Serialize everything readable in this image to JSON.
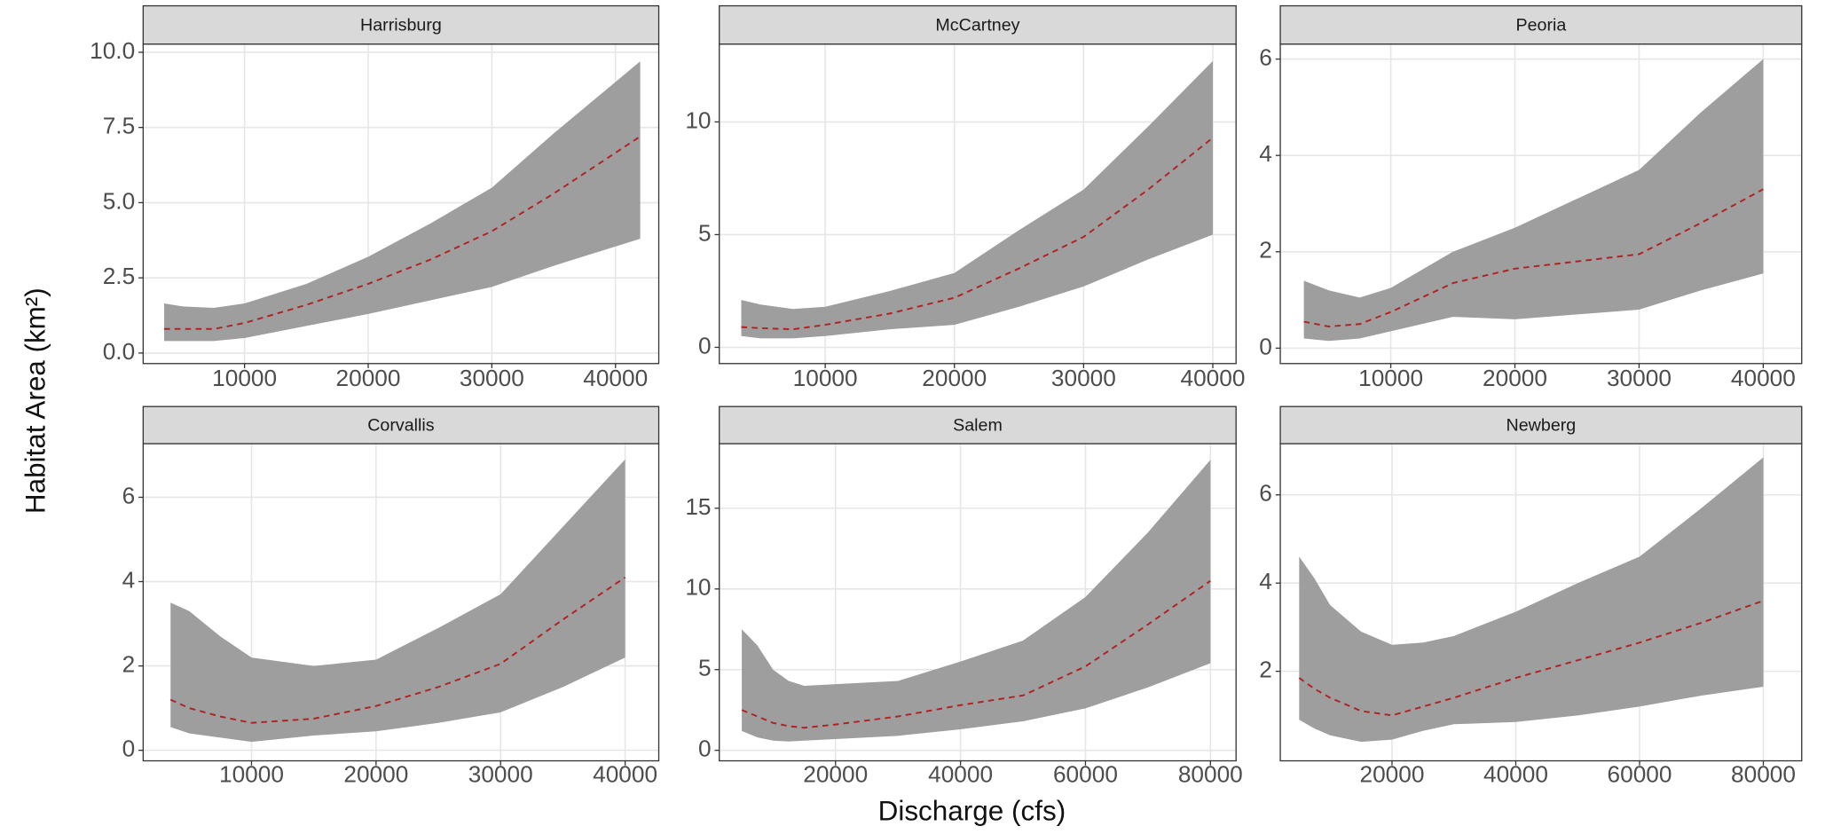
{
  "chart_data": {
    "type": "facet",
    "xlabel": "Discharge (cfs)",
    "ylabel": "Habitat Area (km²)",
    "panels": [
      {
        "type": "band",
        "title": "Harrisburg",
        "band_color": "#999999",
        "line_color": "#b22222",
        "x": [
          3500,
          5000,
          7500,
          10000,
          15000,
          20000,
          25000,
          30000,
          35000,
          42000
        ],
        "upper": [
          1.65,
          1.55,
          1.5,
          1.65,
          2.3,
          3.2,
          4.3,
          5.5,
          7.3,
          9.7
        ],
        "median": [
          0.8,
          0.8,
          0.8,
          1.0,
          1.6,
          2.3,
          3.1,
          4.05,
          5.3,
          7.2
        ],
        "lower": [
          0.4,
          0.4,
          0.4,
          0.5,
          0.9,
          1.3,
          1.75,
          2.2,
          2.9,
          3.8
        ],
        "xlim": [
          1800,
          43500
        ],
        "ylim": [
          -0.35,
          10.27
        ],
        "xticks": [
          10000,
          20000,
          30000,
          40000
        ],
        "yticks": [
          {
            "value": 0,
            "label": "0.0"
          },
          2.5,
          {
            "value": 5,
            "label": "5.0"
          },
          7.5,
          {
            "value": 10,
            "label": "10.0"
          }
        ]
      },
      {
        "type": "band",
        "title": "McCartney",
        "band_color": "#999999",
        "line_color": "#b22222",
        "x": [
          3500,
          5000,
          7500,
          10000,
          15000,
          20000,
          25000,
          30000,
          35000,
          40000
        ],
        "upper": [
          2.1,
          1.9,
          1.7,
          1.8,
          2.5,
          3.3,
          5.2,
          7.0,
          9.8,
          12.7
        ],
        "median": [
          0.9,
          0.85,
          0.8,
          1.0,
          1.5,
          2.2,
          3.5,
          4.9,
          7.0,
          9.3
        ],
        "lower": [
          0.5,
          0.4,
          0.4,
          0.5,
          0.8,
          1.0,
          1.8,
          2.7,
          3.9,
          5.0
        ],
        "xlim": [
          1800,
          41800
        ],
        "ylim": [
          -0.72,
          13.45
        ],
        "xticks": [
          10000,
          20000,
          30000,
          40000
        ],
        "yticks": [
          0,
          5,
          10
        ]
      },
      {
        "type": "band",
        "title": "Peoria",
        "band_color": "#999999",
        "line_color": "#b22222",
        "x": [
          3000,
          5000,
          7500,
          10000,
          15000,
          20000,
          25000,
          30000,
          35000,
          40000
        ],
        "upper": [
          1.4,
          1.2,
          1.05,
          1.25,
          2.0,
          2.5,
          3.1,
          3.7,
          4.9,
          6.0
        ],
        "median": [
          0.55,
          0.45,
          0.5,
          0.75,
          1.35,
          1.65,
          1.8,
          1.95,
          2.6,
          3.3
        ],
        "lower": [
          0.2,
          0.15,
          0.2,
          0.35,
          0.65,
          0.6,
          0.7,
          0.8,
          1.2,
          1.55
        ],
        "xlim": [
          1100,
          43100
        ],
        "ylim": [
          -0.32,
          6.31
        ],
        "xticks": [
          10000,
          20000,
          30000,
          40000
        ],
        "yticks": [
          0,
          2,
          4,
          6
        ]
      },
      {
        "type": "band",
        "title": "Corvallis",
        "band_color": "#999999",
        "line_color": "#b22222",
        "x": [
          3500,
          5000,
          7500,
          10000,
          15000,
          20000,
          25000,
          30000,
          35000,
          40000
        ],
        "upper": [
          3.5,
          3.3,
          2.7,
          2.2,
          2.0,
          2.15,
          2.9,
          3.7,
          5.3,
          6.9
        ],
        "median": [
          1.2,
          1.0,
          0.8,
          0.65,
          0.75,
          1.05,
          1.5,
          2.05,
          3.1,
          4.1
        ],
        "lower": [
          0.55,
          0.4,
          0.3,
          0.2,
          0.35,
          0.45,
          0.65,
          0.9,
          1.5,
          2.2
        ],
        "xlim": [
          1300,
          42700
        ],
        "ylim": [
          -0.25,
          7.27
        ],
        "xticks": [
          10000,
          20000,
          30000,
          40000
        ],
        "yticks": [
          0,
          2,
          4,
          6
        ]
      },
      {
        "type": "band",
        "title": "Salem",
        "band_color": "#999999",
        "line_color": "#b22222",
        "x": [
          5000,
          7500,
          10000,
          12500,
          15000,
          20000,
          30000,
          40000,
          50000,
          60000,
          70000,
          80000
        ],
        "upper": [
          7.5,
          6.5,
          5.0,
          4.3,
          4.0,
          4.1,
          4.3,
          5.5,
          6.8,
          9.5,
          13.5,
          18.0
        ],
        "median": [
          2.5,
          2.1,
          1.7,
          1.5,
          1.4,
          1.6,
          2.1,
          2.8,
          3.4,
          5.2,
          7.8,
          10.5
        ],
        "lower": [
          1.2,
          0.8,
          0.6,
          0.55,
          0.6,
          0.7,
          0.9,
          1.3,
          1.8,
          2.6,
          3.9,
          5.4
        ],
        "xlim": [
          1400,
          84100
        ],
        "ylim": [
          -0.65,
          19.0
        ],
        "xticks": [
          20000,
          40000,
          60000,
          80000
        ],
        "yticks": [
          0,
          5,
          10,
          15
        ]
      },
      {
        "type": "band",
        "title": "Newberg",
        "band_color": "#999999",
        "line_color": "#b22222",
        "x": [
          5000,
          7500,
          10000,
          15000,
          20000,
          25000,
          30000,
          40000,
          50000,
          60000,
          70000,
          80000
        ],
        "upper": [
          4.6,
          4.1,
          3.5,
          2.9,
          2.6,
          2.65,
          2.8,
          3.35,
          4.0,
          4.6,
          5.7,
          6.85
        ],
        "median": [
          1.85,
          1.6,
          1.4,
          1.1,
          1.0,
          1.2,
          1.4,
          1.85,
          2.25,
          2.65,
          3.1,
          3.6
        ],
        "lower": [
          0.9,
          0.7,
          0.55,
          0.4,
          0.45,
          0.65,
          0.8,
          0.85,
          1.0,
          1.2,
          1.45,
          1.65
        ],
        "xlim": [
          1950,
          86200
        ],
        "ylim": [
          -0.03,
          7.16
        ],
        "xticks": [
          20000,
          40000,
          60000,
          80000
        ],
        "yticks": [
          2,
          4,
          6
        ]
      }
    ]
  }
}
